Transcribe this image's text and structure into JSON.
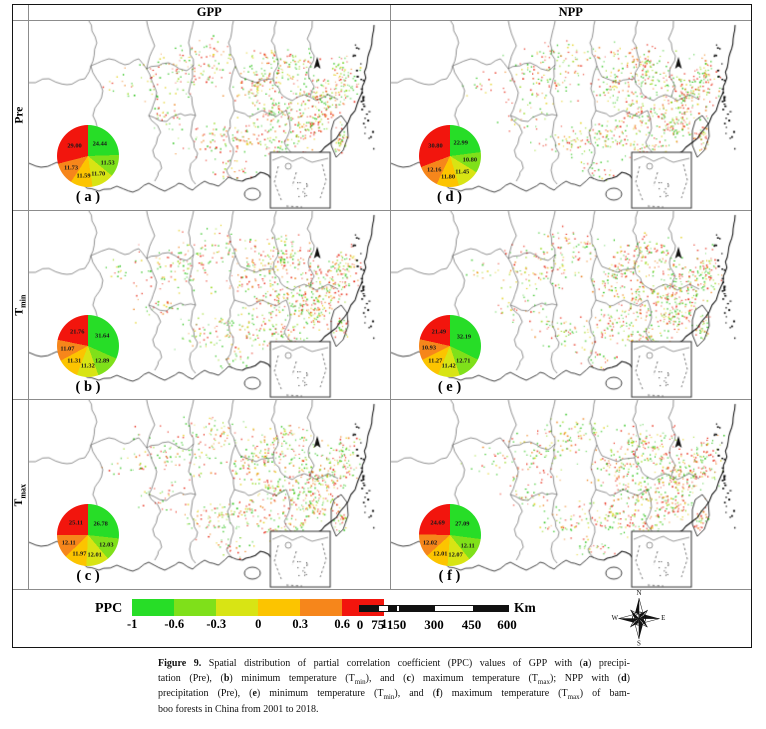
{
  "figure": {
    "columns": [
      "GPP",
      "NPP"
    ],
    "rows": [
      {
        "base": "Pre",
        "sub": ""
      },
      {
        "base": "T",
        "sub": "min"
      },
      {
        "base": "T",
        "sub": "max"
      }
    ],
    "pie_colors": [
      "#27dd27",
      "#7fe01a",
      "#d8e414",
      "#fcc400",
      "#f6861b",
      "#f2150d"
    ],
    "panels": [
      {
        "letter": "( a )",
        "values": [
          "24.44",
          "11.53",
          "11.70",
          "11.59",
          "11.73",
          "29.00"
        ]
      },
      {
        "letter": "( d )",
        "values": [
          "22.99",
          "10.80",
          "11.45",
          "11.80",
          "12.16",
          "30.80"
        ]
      },
      {
        "letter": "( b )",
        "values": [
          "31.64",
          "12.89",
          "11.32",
          "11.31",
          "11.07",
          "21.76"
        ]
      },
      {
        "letter": "( e )",
        "values": [
          "32.19",
          "12.71",
          "11.42",
          "11.27",
          "10.93",
          "21.49"
        ]
      },
      {
        "letter": "( c )",
        "values": [
          "26.78",
          "12.03",
          "12.01",
          "11.97",
          "12.11",
          "25.11"
        ]
      },
      {
        "letter": "( f )",
        "values": [
          "27.09",
          "12.11",
          "12.07",
          "12.01",
          "12.02",
          "24.69"
        ]
      }
    ],
    "legend": {
      "title": "PPC",
      "ticks": [
        "-1",
        "-0.6",
        "-0.3",
        "0",
        "0.3",
        "0.6",
        "1"
      ]
    },
    "scalebar": {
      "labels": [
        "0",
        "75",
        "150",
        "300",
        "450",
        "600"
      ],
      "unit": "Km"
    },
    "compass": {
      "n": "N",
      "e": "E",
      "s": "S",
      "w": "W"
    }
  },
  "caption": {
    "lines": [
      "**Figure 9.** Spatial distribution of partial correlation coefficient (PPC) values of GPP with (**a**) precipi-",
      "tation (Pre), (**b**) minimum temperature (T~min~), and (**c**) maximum temperature (T~max~); NPP with (**d**)",
      "precipitation (Pre), (**e**) minimum temperature (T~min~), and (**f**) maximum temperature (T~max~) of bam-",
      "boo forests in China from 2001 to 2018."
    ]
  }
}
